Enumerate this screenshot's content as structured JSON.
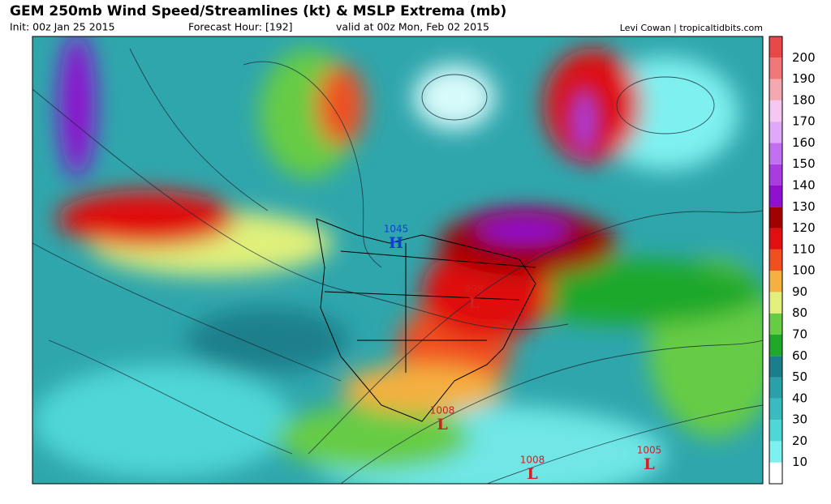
{
  "header": {
    "title": "GEM 250mb Wind Speed/Streamlines (kt) & MSLP Extrema (mb)",
    "init": "Init: 00z Jan 25 2015",
    "forecast_hour": "Forecast Hour: [192]",
    "valid": "valid at 00z Mon, Feb 02 2015",
    "credit": "Levi Cowan | tropicaltidbits.com"
  },
  "colorbar": {
    "ticks": [
      10,
      20,
      30,
      40,
      50,
      60,
      70,
      80,
      90,
      100,
      110,
      120,
      130,
      140,
      150,
      160,
      170,
      180,
      190,
      200
    ],
    "colors": [
      "#7ff0f0",
      "#4fd6d6",
      "#38bcc0",
      "#2aa0a8",
      "#1a7f8a",
      "#1fa82c",
      "#66cc44",
      "#e0f07a",
      "#f4b040",
      "#f05020",
      "#e01010",
      "#a00000",
      "#9010d0",
      "#a83ce0",
      "#c070f0",
      "#e0a8f8",
      "#f4c8f0",
      "#f4a8b0",
      "#f07878",
      "#e84848"
    ]
  },
  "pressure_centers": [
    {
      "value": "1045",
      "letter": "H",
      "color": "#1040d0"
    },
    {
      "value": "998",
      "letter": "L",
      "color": "#d02020"
    },
    {
      "value": "1008",
      "letter": "L",
      "color": "#d02020"
    },
    {
      "value": "1008",
      "letter": "L",
      "color": "#d02020"
    },
    {
      "value": "1005",
      "letter": "L",
      "color": "#d02020"
    }
  ]
}
